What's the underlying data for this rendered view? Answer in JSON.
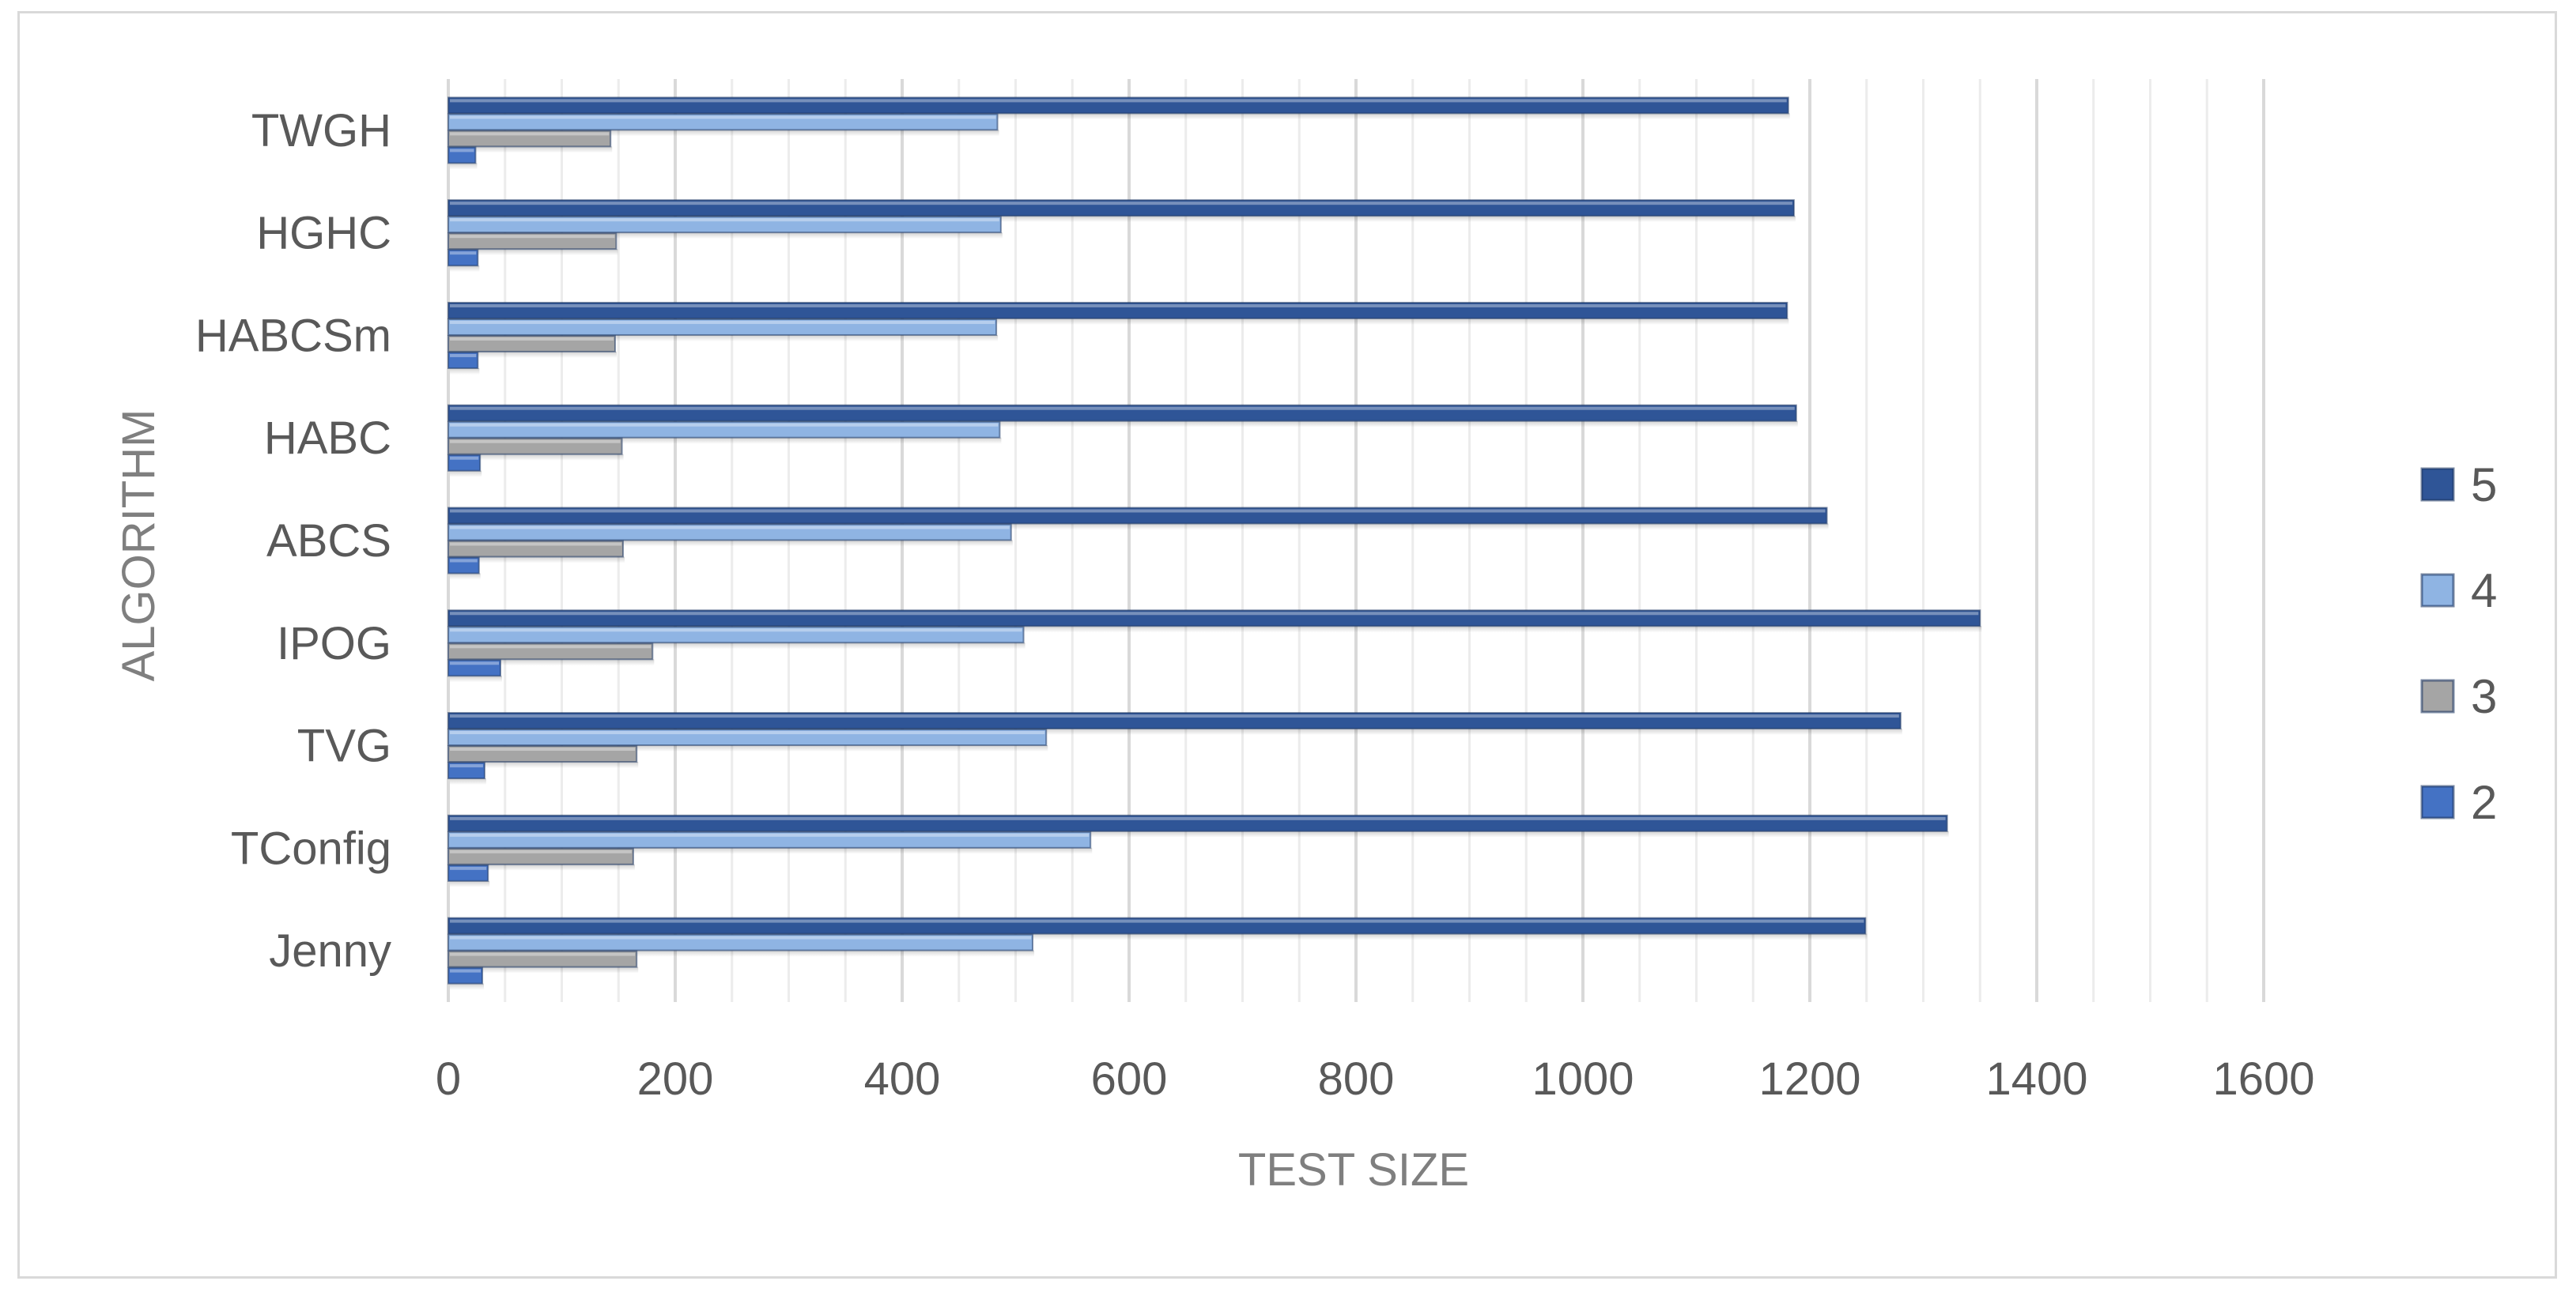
{
  "chart_data": {
    "type": "bar",
    "orientation": "horizontal",
    "title": "",
    "xlabel": "TEST SIZE",
    "ylabel": "ALGORITHM",
    "categories": [
      "Jenny",
      "TConfig",
      "TVG",
      "IPOG",
      "ABCS",
      "HABC",
      "HABCSm",
      "HGHC",
      "TWGH"
    ],
    "series": [
      {
        "name": "2",
        "color": "#4472c4",
        "values": [
          30,
          35,
          32,
          46,
          27,
          28,
          26,
          26,
          24
        ]
      },
      {
        "name": "3",
        "color": "#a5a5a5",
        "values": [
          166,
          163,
          166,
          180,
          154,
          153,
          147,
          148,
          143
        ]
      },
      {
        "name": "4",
        "color": "#8fb4e3",
        "values": [
          515,
          566,
          527,
          507,
          496,
          486,
          483,
          487,
          484
        ]
      },
      {
        "name": "5",
        "color": "#2f5597",
        "values": [
          1249,
          1321,
          1280,
          1350,
          1215,
          1188,
          1180,
          1186,
          1181
        ]
      }
    ],
    "xlim": [
      0,
      1600
    ],
    "xticks": [
      "0",
      "200",
      "400",
      "600",
      "800",
      "1000",
      "1200",
      "1400",
      "1600"
    ],
    "grid": true,
    "legend": {
      "position": "right",
      "order": [
        "5",
        "4",
        "3",
        "2"
      ]
    }
  }
}
